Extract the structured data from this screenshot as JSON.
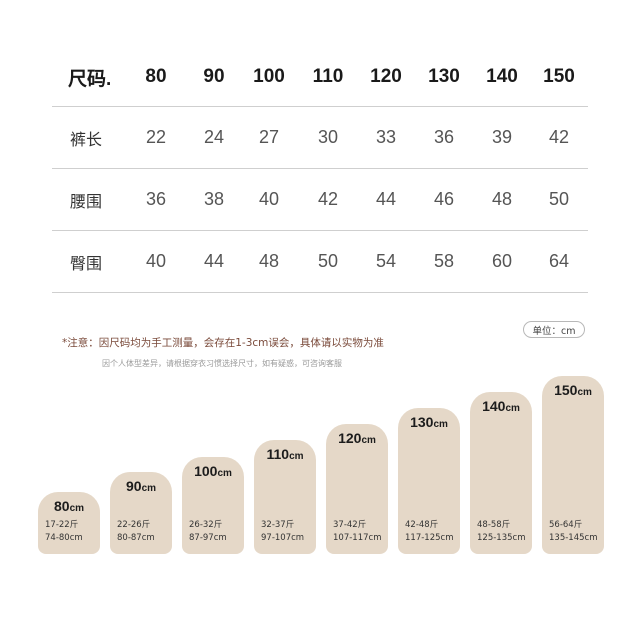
{
  "table": {
    "header": {
      "label": "尺码.",
      "sizes": [
        "80",
        "90",
        "100",
        "110",
        "120",
        "130",
        "140",
        "150"
      ]
    },
    "rows": [
      {
        "label": "裤长",
        "values": [
          "22",
          "24",
          "27",
          "30",
          "33",
          "36",
          "39",
          "42"
        ]
      },
      {
        "label": "腰围",
        "values": [
          "36",
          "38",
          "40",
          "42",
          "44",
          "46",
          "48",
          "50"
        ]
      },
      {
        "label": "臀围",
        "values": [
          "40",
          "44",
          "48",
          "50",
          "54",
          "58",
          "60",
          "64"
        ]
      }
    ]
  },
  "unit_label": "单位：cm",
  "note": "*注意：因尺码均为手工测量，会存在1-3cm误会，具体请以实物为准",
  "subnote": "因个人体型差异，请根据穿衣习惯选择尺寸，如有疑惑，可咨询客服",
  "size_guide": [
    {
      "size": "80",
      "unit": "cm",
      "weight": "17-22斤",
      "height": "74-80cm"
    },
    {
      "size": "90",
      "unit": "cm",
      "weight": "22-26斤",
      "height": "80-87cm"
    },
    {
      "size": "100",
      "unit": "cm",
      "weight": "26-32斤",
      "height": "87-97cm"
    },
    {
      "size": "110",
      "unit": "cm",
      "weight": "32-37斤",
      "height": "97-107cm"
    },
    {
      "size": "120",
      "unit": "cm",
      "weight": "37-42斤",
      "height": "107-117cm"
    },
    {
      "size": "130",
      "unit": "cm",
      "weight": "42-48斤",
      "height": "117-125cm"
    },
    {
      "size": "140",
      "unit": "cm",
      "weight": "48-58斤",
      "height": "125-135cm"
    },
    {
      "size": "150",
      "unit": "cm",
      "weight": "56-64斤",
      "height": "135-145cm"
    }
  ],
  "colors": {
    "bar": "#e5d8c8",
    "note": "#7a4a3a",
    "divider": "#cfcfcf"
  }
}
